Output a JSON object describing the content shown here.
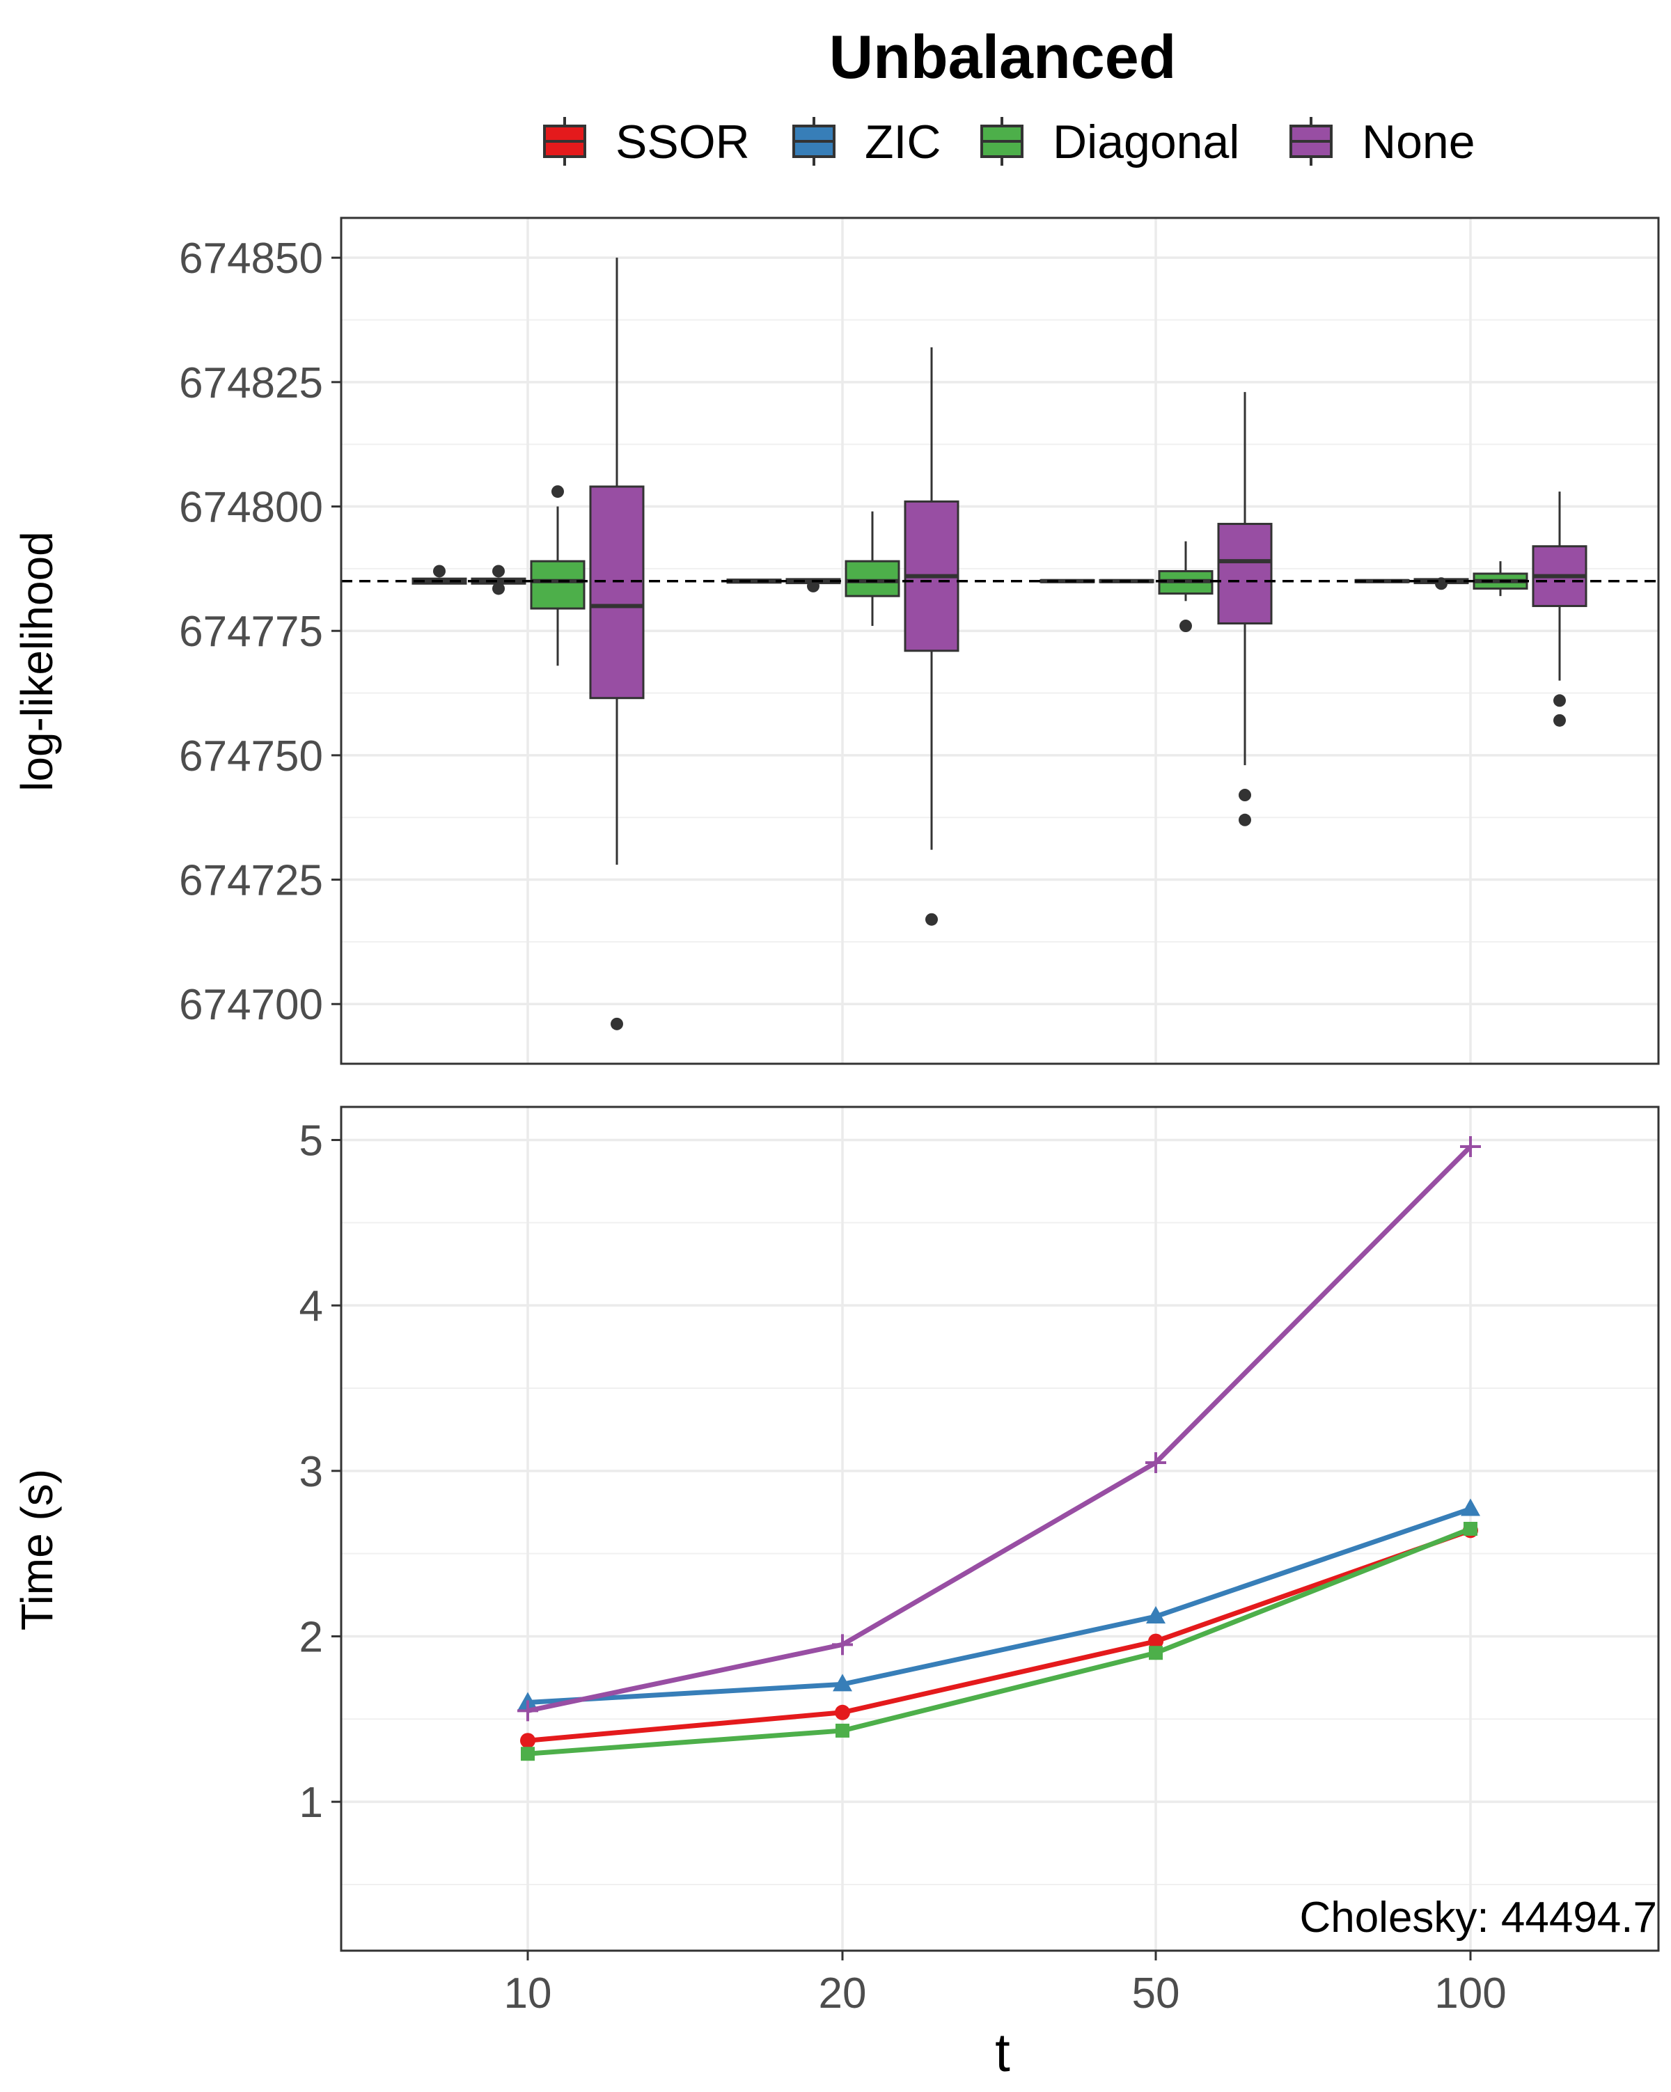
{
  "chart_data": [
    {
      "type": "box",
      "title": "Unbalanced",
      "xlabel": "",
      "ylabel": "log-likelihood",
      "categories": [
        "10",
        "20",
        "50",
        "100"
      ],
      "ylim": [
        674688,
        674858
      ],
      "yticks": [
        674700,
        674725,
        674750,
        674775,
        674800,
        674825,
        674850
      ],
      "yticks_text": [
        "674700",
        "674725",
        "674750",
        "674775",
        "674800",
        "674825",
        "674850"
      ],
      "reference_line": 674785,
      "grid": true,
      "legend": {
        "position": "top",
        "entries": [
          "SSOR",
          "ZIC",
          "Diagonal",
          "None"
        ]
      },
      "series": [
        {
          "name": "SSOR",
          "color": "#e41a1c",
          "boxes": [
            {
              "min": 674784.5,
              "q1": 674784.5,
              "median": 674785,
              "q3": 674785.5,
              "max": 674785.5,
              "outliers": [
                674787
              ]
            },
            {
              "min": 674784.7,
              "q1": 674784.7,
              "median": 674785,
              "q3": 674785.3,
              "max": 674785.3,
              "outliers": []
            },
            {
              "min": 674784.8,
              "q1": 674784.8,
              "median": 674785,
              "q3": 674785.2,
              "max": 674785.2,
              "outliers": []
            },
            {
              "min": 674784.8,
              "q1": 674784.8,
              "median": 674785,
              "q3": 674785.2,
              "max": 674785.2,
              "outliers": []
            }
          ]
        },
        {
          "name": "ZIC",
          "color": "#377eb8",
          "boxes": [
            {
              "min": 674784.5,
              "q1": 674784.5,
              "median": 674785,
              "q3": 674785.5,
              "max": 674785.5,
              "outliers": [
                674787,
                674783.5
              ]
            },
            {
              "min": 674784.6,
              "q1": 674784.6,
              "median": 674785,
              "q3": 674785.4,
              "max": 674785.4,
              "outliers": [
                674784
              ]
            },
            {
              "min": 674784.8,
              "q1": 674784.8,
              "median": 674785,
              "q3": 674785.2,
              "max": 674785.2,
              "outliers": []
            },
            {
              "min": 674784.6,
              "q1": 674784.6,
              "median": 674785,
              "q3": 674785.4,
              "max": 674785.4,
              "outliers": [
                674784.5
              ]
            }
          ]
        },
        {
          "name": "Diagonal",
          "color": "#4daf4a",
          "boxes": [
            {
              "min": 674768,
              "q1": 674779.5,
              "median": 674785,
              "q3": 674789,
              "max": 674800,
              "outliers": [
                674803
              ]
            },
            {
              "min": 674776,
              "q1": 674782,
              "median": 674785,
              "q3": 674789,
              "max": 674799,
              "outliers": []
            },
            {
              "min": 674781,
              "q1": 674782.5,
              "median": 674785,
              "q3": 674787,
              "max": 674793,
              "outliers": [
                674776
              ]
            },
            {
              "min": 674782,
              "q1": 674783.5,
              "median": 674785,
              "q3": 674786.5,
              "max": 674789,
              "outliers": []
            }
          ]
        },
        {
          "name": "None",
          "color": "#984ea3",
          "boxes": [
            {
              "min": 674728,
              "q1": 674761.5,
              "median": 674780,
              "q3": 674804,
              "max": 674850,
              "outliers": [
                674696
              ]
            },
            {
              "min": 674731,
              "q1": 674771,
              "median": 674786,
              "q3": 674801,
              "max": 674832,
              "outliers": [
                674717
              ]
            },
            {
              "min": 674748,
              "q1": 674776.5,
              "median": 674789,
              "q3": 674796.5,
              "max": 674823,
              "outliers": [
                674742,
                674737
              ]
            },
            {
              "min": 674765,
              "q1": 674780,
              "median": 674786,
              "q3": 674792,
              "max": 674803,
              "outliers": [
                674761,
                674757
              ]
            }
          ]
        }
      ]
    },
    {
      "type": "line",
      "xlabel": "t",
      "ylabel": "Time (s)",
      "categories": [
        "10",
        "20",
        "50",
        "100"
      ],
      "ylim": [
        0.1,
        5.2
      ],
      "yticks": [
        1,
        2,
        3,
        4,
        5
      ],
      "yticks_text": [
        "1",
        "2",
        "3",
        "4",
        "5"
      ],
      "grid": true,
      "annotation": "Cholesky: 44494.7",
      "series": [
        {
          "name": "SSOR",
          "color": "#e41a1c",
          "marker": "circle",
          "values": [
            1.37,
            1.54,
            1.97,
            2.64
          ]
        },
        {
          "name": "ZIC",
          "color": "#377eb8",
          "marker": "triangle",
          "values": [
            1.6,
            1.71,
            2.12,
            2.77
          ]
        },
        {
          "name": "Diagonal",
          "color": "#4daf4a",
          "marker": "square",
          "values": [
            1.29,
            1.43,
            1.9,
            2.65
          ]
        },
        {
          "name": "None",
          "color": "#984ea3",
          "marker": "plus",
          "values": [
            1.55,
            1.95,
            3.05,
            4.96
          ]
        }
      ]
    }
  ]
}
